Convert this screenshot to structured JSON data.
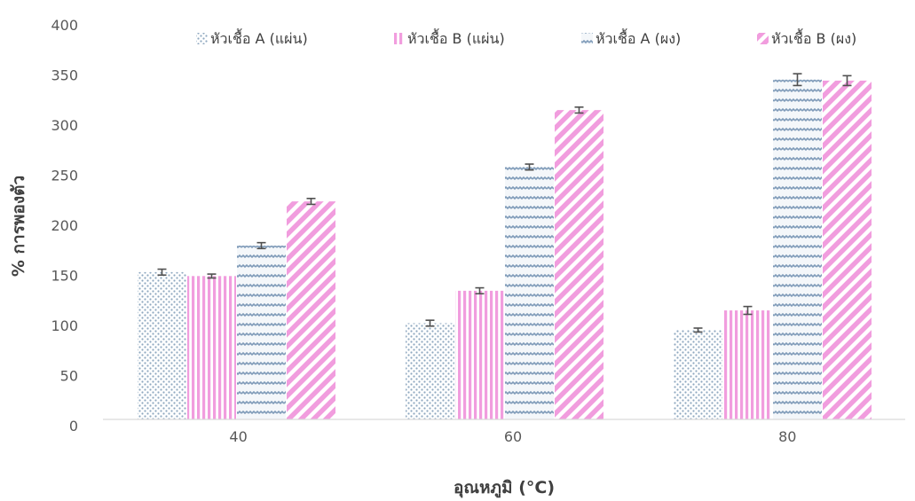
{
  "chart_data": {
    "type": "bar",
    "categories": [
      "40",
      "60",
      "80"
    ],
    "series": [
      {
        "name": "หัวเชื้อ A  (แผ่น)",
        "values": [
          150,
          98,
          91
        ],
        "errors": [
          3,
          3,
          2
        ],
        "color": "#8FA8C0",
        "pattern": "dots"
      },
      {
        "name": "หัวเชื้อ B (แผ่น)",
        "values": [
          146,
          131,
          111
        ],
        "errors": [
          2,
          3,
          4
        ],
        "color": "#F19DDE",
        "pattern": "vertical"
      },
      {
        "name": "หัวเชื้อ A (ผง)",
        "values": [
          177,
          257,
          346
        ],
        "errors": [
          3,
          3,
          6
        ],
        "color": "#7E9AB8",
        "pattern": "zigzag"
      },
      {
        "name": "หัวเชื้อ B (ผง)",
        "values": [
          222,
          315,
          345
        ],
        "errors": [
          3,
          3,
          5
        ],
        "color": "#F19DDE",
        "pattern": "diagonal"
      }
    ],
    "xlabel": "อุณหภูมิ (°C)",
    "ylabel": "% การพองตัว",
    "ylim": [
      0,
      400
    ],
    "yticks": [
      "0",
      "50",
      "100",
      "150",
      "200",
      "250",
      "300",
      "350",
      "400"
    ],
    "grid": false,
    "legend_position": "top"
  }
}
